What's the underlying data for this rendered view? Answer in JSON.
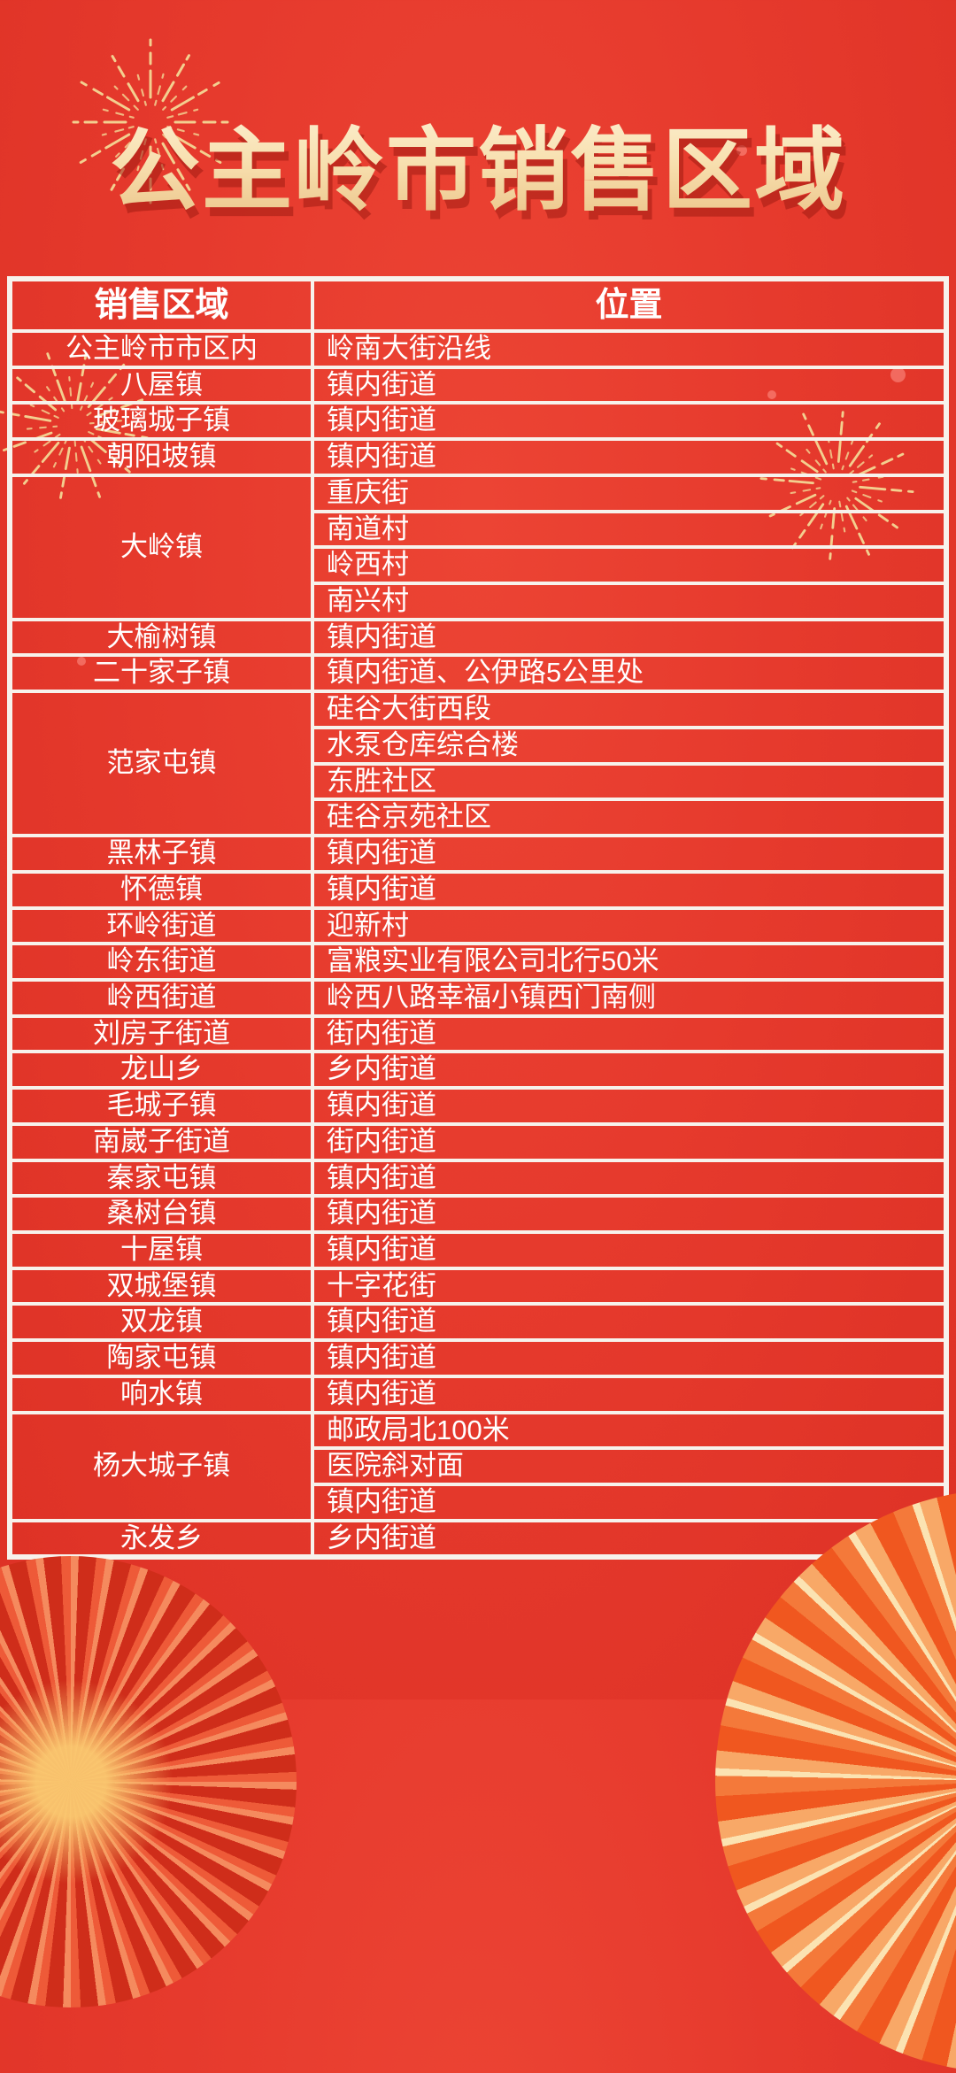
{
  "title": {
    "text": "公主岭市销售区域"
  },
  "table": {
    "headers": [
      "销售区域",
      "位置"
    ],
    "groups": [
      {
        "region": "公主岭市市区内",
        "locations": [
          "岭南大街沿线"
        ]
      },
      {
        "region": "八屋镇",
        "locations": [
          "镇内街道"
        ]
      },
      {
        "region": "玻璃城子镇",
        "locations": [
          "镇内街道"
        ]
      },
      {
        "region": "朝阳坡镇",
        "locations": [
          "镇内街道"
        ]
      },
      {
        "region": "大岭镇",
        "locations": [
          "重庆街",
          "南道村",
          "岭西村",
          "南兴村"
        ]
      },
      {
        "region": "大榆树镇",
        "locations": [
          "镇内街道"
        ]
      },
      {
        "region": "二十家子镇",
        "locations": [
          "镇内街道、公伊路5公里处"
        ]
      },
      {
        "region": "范家屯镇",
        "locations": [
          "硅谷大街西段",
          "水泵仓库综合楼",
          "东胜社区",
          "硅谷京苑社区"
        ]
      },
      {
        "region": "黑林子镇",
        "locations": [
          "镇内街道"
        ]
      },
      {
        "region": "怀德镇",
        "locations": [
          "镇内街道"
        ]
      },
      {
        "region": "环岭街道",
        "locations": [
          "迎新村"
        ]
      },
      {
        "region": "岭东街道",
        "locations": [
          "富粮实业有限公司北行50米"
        ]
      },
      {
        "region": "岭西街道",
        "locations": [
          "岭西八路幸福小镇西门南侧"
        ]
      },
      {
        "region": "刘房子街道",
        "locations": [
          "街内街道"
        ]
      },
      {
        "region": "龙山乡",
        "locations": [
          "乡内街道"
        ]
      },
      {
        "region": "毛城子镇",
        "locations": [
          "镇内街道"
        ]
      },
      {
        "region": "南崴子街道",
        "locations": [
          "街内街道"
        ]
      },
      {
        "region": "秦家屯镇",
        "locations": [
          "镇内街道"
        ]
      },
      {
        "region": "桑树台镇",
        "locations": [
          "镇内街道"
        ]
      },
      {
        "region": "十屋镇",
        "locations": [
          "镇内街道"
        ]
      },
      {
        "region": "双城堡镇",
        "locations": [
          "十字花街"
        ]
      },
      {
        "region": "双龙镇",
        "locations": [
          "镇内街道"
        ]
      },
      {
        "region": "陶家屯镇",
        "locations": [
          "镇内街道"
        ]
      },
      {
        "region": "响水镇",
        "locations": [
          "镇内街道"
        ]
      },
      {
        "region": "杨大城子镇",
        "locations": [
          "邮政局北100米",
          "医院斜对面",
          "镇内街道"
        ]
      },
      {
        "region": "永发乡",
        "locations": [
          "乡内街道"
        ]
      }
    ]
  },
  "colors": {
    "background": "#e63a2d",
    "table_border": "#f7f2ec",
    "cell_text": "#ffffff",
    "title_gold_light": "#fdf0d2",
    "title_gold_dark": "#e9bd80",
    "title_shadow": "#a01c12",
    "firework_gold": "#f3cf8f",
    "fan_left_red": "#cf2d1a",
    "fan_right_orange": "#f0571f",
    "fan_cream": "#fbe3b2"
  },
  "decor": {
    "icons": [
      "firework-icon",
      "firework-icon",
      "firework-icon",
      "paper-fan-icon",
      "paper-fan-icon",
      "sparkle-dot"
    ]
  }
}
